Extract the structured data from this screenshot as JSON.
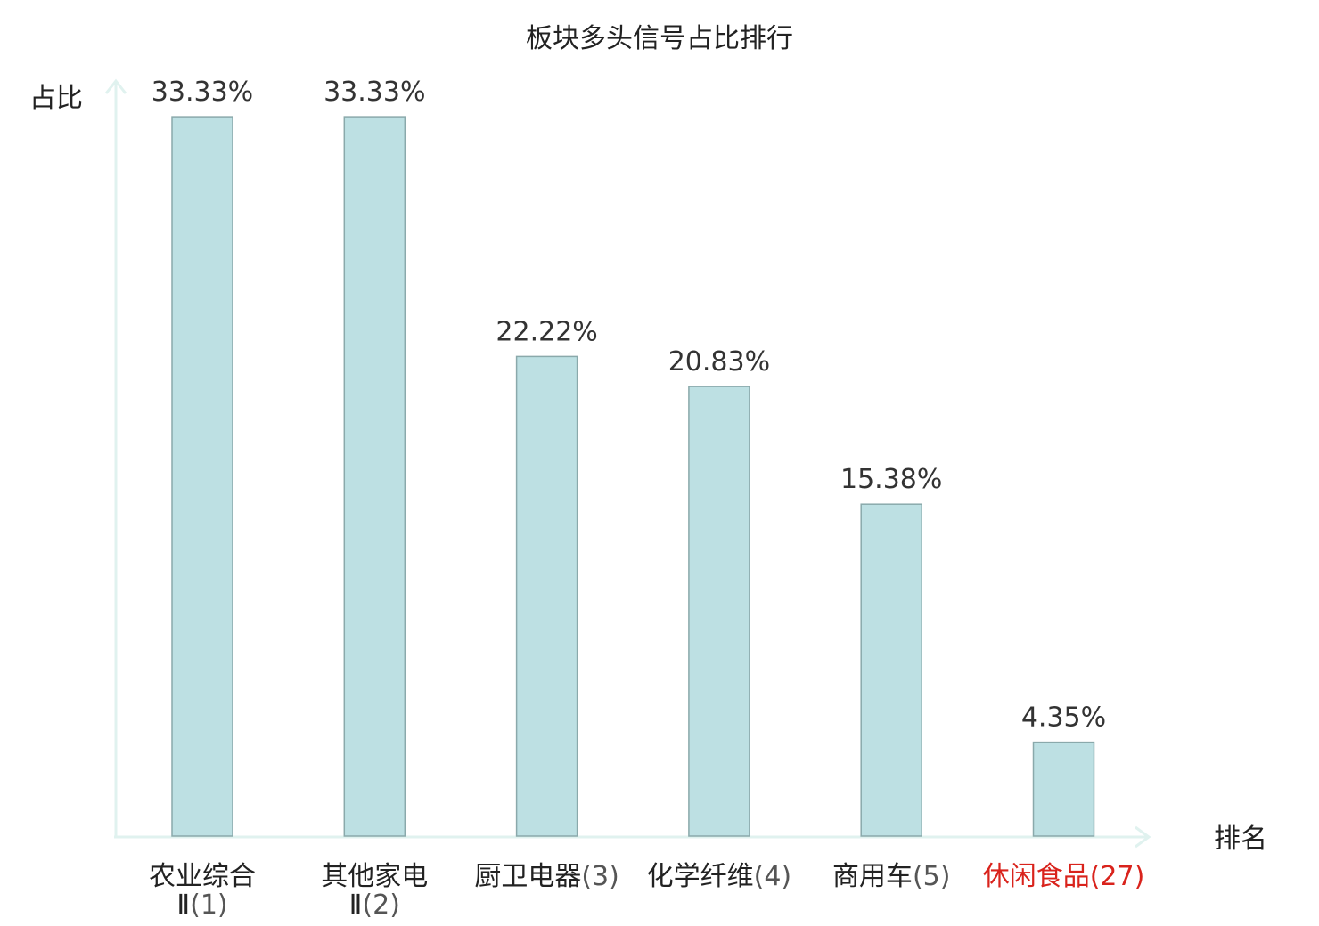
{
  "chart_data": {
    "type": "bar",
    "title": "板块多头信号占比排行",
    "ylabel": "占比",
    "xlabel": "排名",
    "ylim": [
      0,
      35
    ],
    "categories": [
      {
        "name_lines": [
          "农业综合",
          "Ⅱ"
        ],
        "rank": "(1)",
        "highlight": false
      },
      {
        "name_lines": [
          "其他家电",
          "Ⅱ"
        ],
        "rank": "(2)",
        "highlight": false
      },
      {
        "name_lines": [
          "厨卫电器"
        ],
        "rank": "(3)",
        "highlight": false
      },
      {
        "name_lines": [
          "化学纤维"
        ],
        "rank": "(4)",
        "highlight": false
      },
      {
        "name_lines": [
          "商用车"
        ],
        "rank": "(5)",
        "highlight": false
      },
      {
        "name_lines": [
          "休闲食品"
        ],
        "rank": "(27)",
        "highlight": true
      }
    ],
    "values": [
      33.33,
      33.33,
      22.22,
      20.83,
      15.38,
      4.35
    ],
    "value_labels": [
      "33.33%",
      "33.33%",
      "22.22%",
      "20.83%",
      "15.38%",
      "4.35%"
    ],
    "grid": false,
    "legend": "none",
    "colors": {
      "bar_fill": "#bde0e3",
      "bar_stroke": "#8aa9ab",
      "axis": "#e0f2ef",
      "highlight": "#d9231c"
    }
  }
}
